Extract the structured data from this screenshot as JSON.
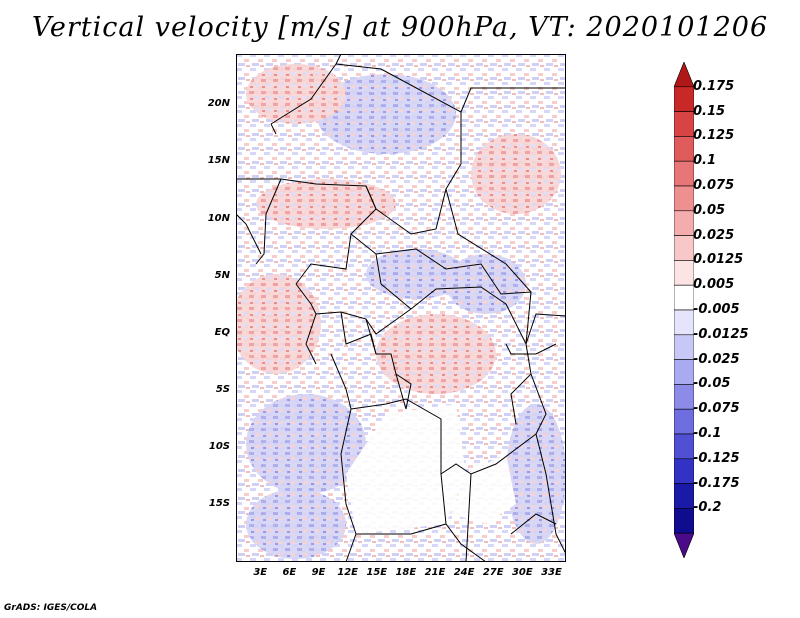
{
  "title": "Vertical velocity [m/s] at 900hPa, VT: 2020101206",
  "credit": "GrADS: IGES/COLA",
  "map": {
    "lat_labels": [
      "20N",
      "15N",
      "10N",
      "5N",
      "EQ",
      "5S",
      "10S",
      "15S"
    ],
    "lat_values": [
      20,
      15,
      10,
      5,
      0,
      -5,
      -10,
      -15
    ],
    "lon_labels": [
      "3E",
      "6E",
      "9E",
      "12E",
      "15E",
      "18E",
      "21E",
      "24E",
      "27E",
      "30E",
      "33E"
    ],
    "lon_values": [
      3,
      6,
      9,
      12,
      15,
      18,
      21,
      24,
      27,
      30,
      33
    ],
    "lat_range": [
      -20,
      24.5
    ],
    "lon_range": [
      0.5,
      34.5
    ]
  },
  "colorbar": {
    "labels": [
      "0.175",
      "0.15",
      "0.125",
      "0.1",
      "0.075",
      "0.05",
      "0.025",
      "0.0125",
      "0.005",
      "-0.005",
      "-0.0125",
      "-0.025",
      "-0.05",
      "-0.075",
      "-0.1",
      "-0.125",
      "-0.175",
      "-0.2"
    ],
    "colors": [
      "#b01818",
      "#c82828",
      "#d84444",
      "#e05c5c",
      "#e87676",
      "#ee9090",
      "#f4acac",
      "#f8c8c8",
      "#fce4e4",
      "#ffffff",
      "#e4e4fc",
      "#c8c8f6",
      "#aaaaf0",
      "#8c8ce8",
      "#6e6ee0",
      "#5050d4",
      "#3232c4",
      "#1a1aa8",
      "#100c90",
      "#4a0a8a"
    ]
  }
}
